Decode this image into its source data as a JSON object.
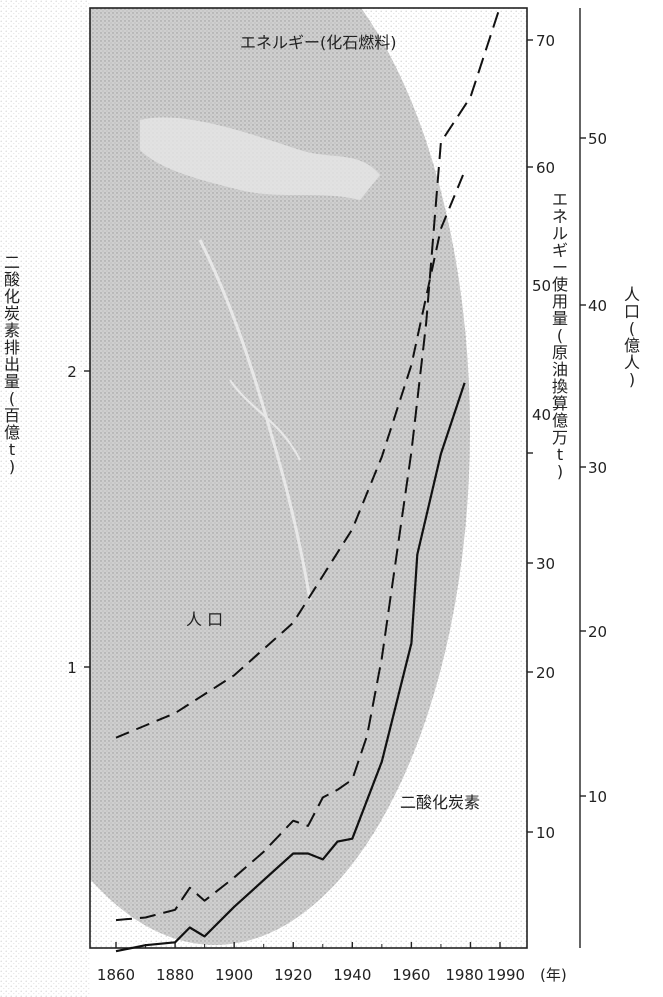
{
  "chart_data": {
    "type": "line",
    "x_ticks": [
      "1860",
      "1880",
      "1900",
      "1920",
      "1940",
      "1960",
      "1980",
      "1990"
    ],
    "x_unit": "(年)",
    "left_axis": {
      "label": "二酸化炭素排出量(百億t)",
      "ticks": [
        "1",
        "2"
      ],
      "range": [
        0,
        2.9
      ]
    },
    "right_axis_energy": {
      "label": "エネルギー使用量(原油換算億万t)",
      "ticks": [
        "10",
        "20",
        "30",
        "40",
        "50",
        "60",
        "70"
      ]
    },
    "right_axis_population": {
      "label": "人口(億人)",
      "ticks": [
        "10",
        "20",
        "30",
        "40",
        "50"
      ]
    },
    "series": [
      {
        "name": "二酸化炭素",
        "style": "solid",
        "axis": "left",
        "x": [
          1860,
          1870,
          1880,
          1885,
          1890,
          1900,
          1910,
          1920,
          1925,
          1930,
          1935,
          1940,
          1950,
          1960,
          1962,
          1970,
          1978
        ],
        "y": [
          0.04,
          0.06,
          0.07,
          0.12,
          0.09,
          0.19,
          0.28,
          0.37,
          0.37,
          0.35,
          0.41,
          0.42,
          0.68,
          1.08,
          1.38,
          1.72,
          1.96
        ]
      },
      {
        "name": "エネルギー(化石燃料)",
        "style": "dashed",
        "axis": "right_energy",
        "x": [
          1860,
          1870,
          1880,
          1885,
          1890,
          1900,
          1910,
          1920,
          1925,
          1930,
          1935,
          1940,
          1945,
          1950,
          1955,
          1960,
          1965,
          1970,
          1980,
          1990
        ],
        "y": [
          1.7,
          1.9,
          2.5,
          4.2,
          3.2,
          5.0,
          7.0,
          9.4,
          9.0,
          11.2,
          11.8,
          12.6,
          16.0,
          22.0,
          30.0,
          38.0,
          48.0,
          62.0,
          65.5,
          72.5
        ]
      },
      {
        "name": "人 口",
        "style": "dashed",
        "axis": "right_population",
        "x": [
          1860,
          1880,
          1900,
          1920,
          1940,
          1950,
          1960,
          1970,
          1978
        ],
        "y": [
          13.6,
          15.1,
          17.4,
          20.6,
          26.3,
          30.7,
          36.3,
          44.6,
          48.1
        ]
      }
    ]
  }
}
